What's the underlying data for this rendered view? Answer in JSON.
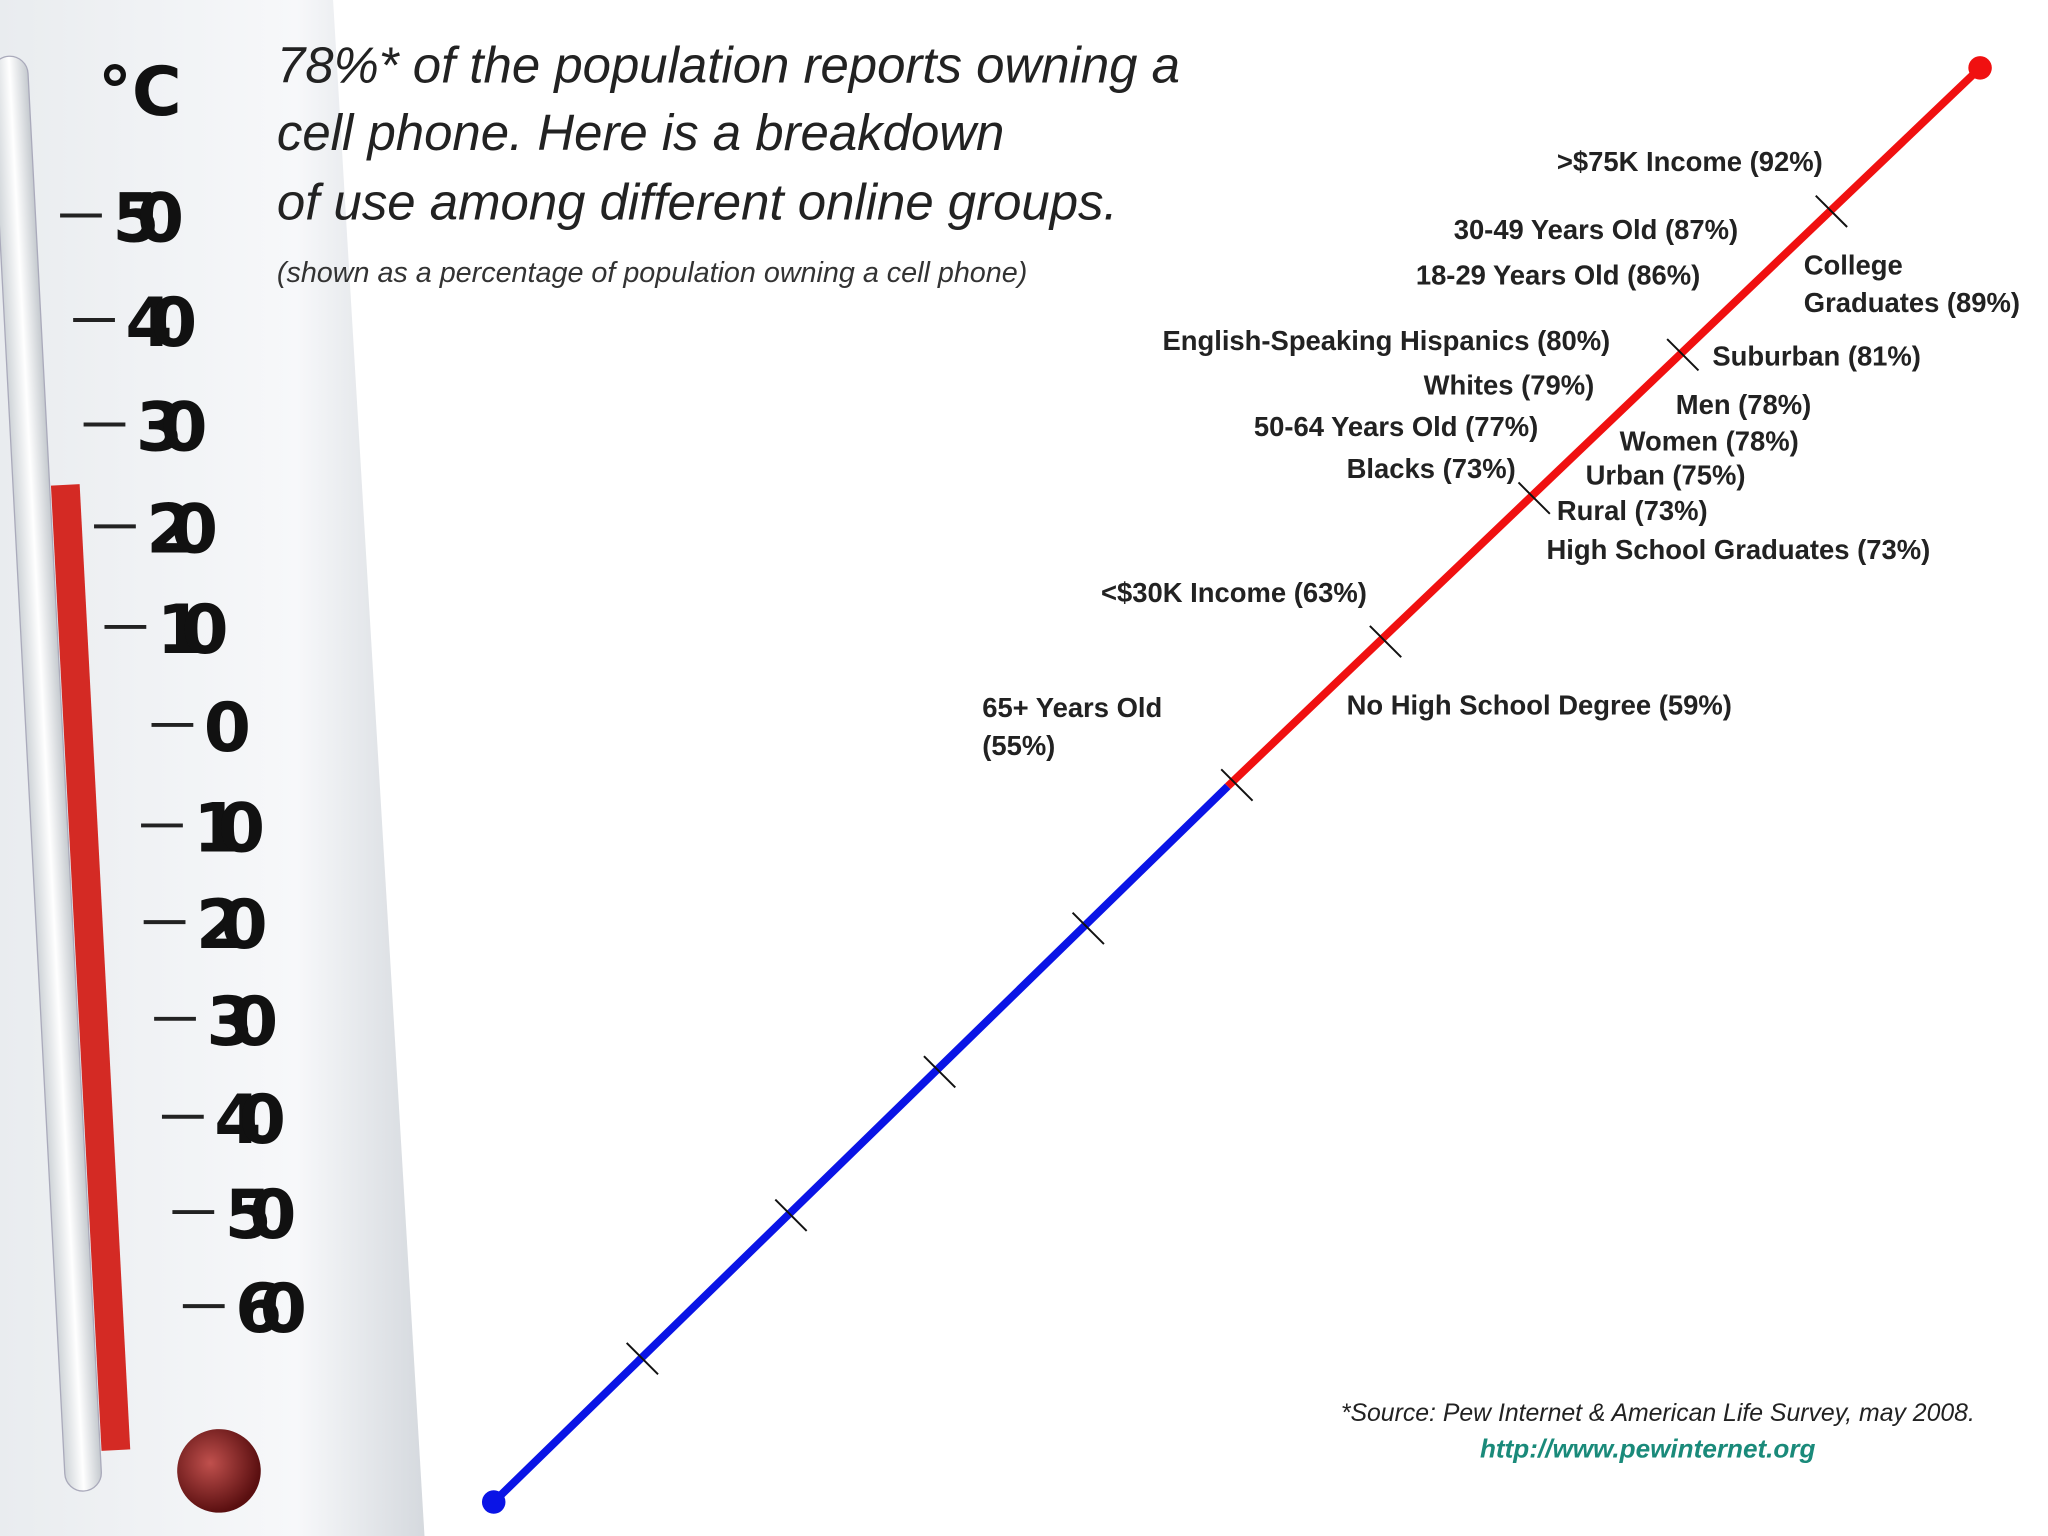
{
  "header": {
    "title": [
      "78%* of the population reports owning a",
      "cell phone. Here is a breakdown",
      "of use among different online groups."
    ],
    "subtitle": "(shown as a percentage of population owning a cell phone)"
  },
  "thermometer": {
    "unit": "°C",
    "scale": [
      "50",
      "40",
      "30",
      "20",
      "10",
      "0",
      "10",
      "20",
      "30",
      "40",
      "50",
      "60"
    ]
  },
  "labels": [
    [
      ">$75K Income (92%)"
    ],
    [
      "30-49 Years Old (87%)"
    ],
    [
      "18-29 Years Old (86%)"
    ],
    [
      "College",
      "Graduates (89%)"
    ],
    [
      "English-Speaking Hispanics (80%)"
    ],
    [
      "Suburban (81%)"
    ],
    [
      "Whites (79%)"
    ],
    [
      "Men (78%)"
    ],
    [
      "50-64 Years Old (77%)"
    ],
    [
      "Women (78%)"
    ],
    [
      "Blacks (73%)"
    ],
    [
      "Urban (75%)"
    ],
    [
      "Rural (73%)"
    ],
    [
      "High School Graduates (73%)"
    ],
    [
      "<$30K Income (63%)"
    ],
    [
      "No High School Degree (59%)"
    ],
    [
      "65+ Years Old",
      "(55%)"
    ]
  ],
  "footer": {
    "source": "*Source: Pew Internet & American Life Survey, may 2008.",
    "url": "http://www.pewinternet.org"
  }
}
